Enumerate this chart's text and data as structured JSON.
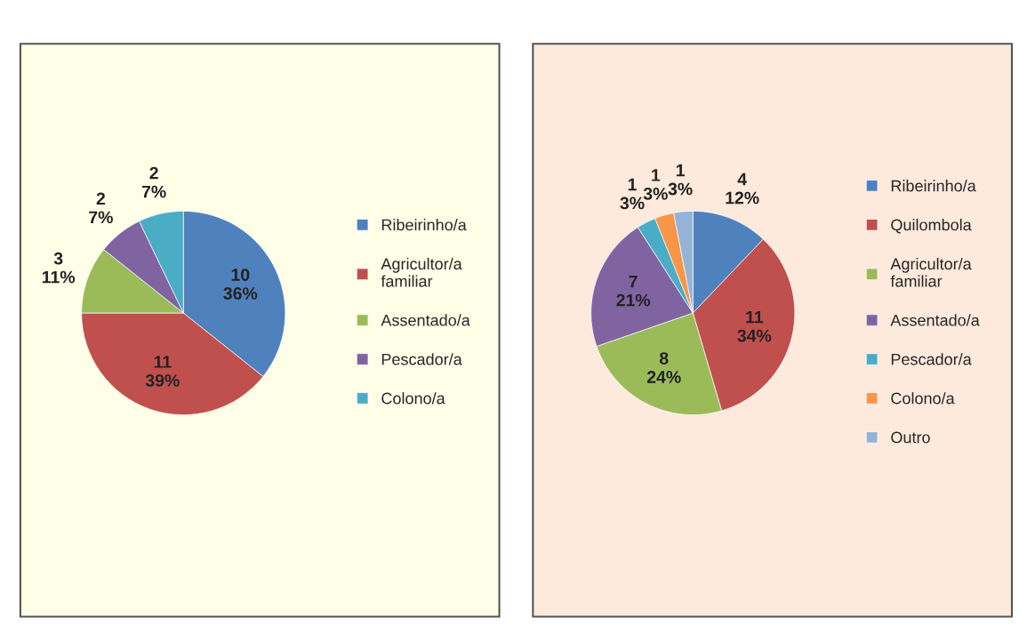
{
  "chart_data": [
    {
      "type": "pie",
      "categories": [
        "Ribeirinho/a",
        "Agricultor/a\nfamiliar",
        "Assentado/a",
        "Pescador/a",
        "Colono/a"
      ],
      "values": [
        10,
        11,
        3,
        2,
        2
      ],
      "colors": [
        "#4f81bd",
        "#c0504d",
        "#9bbb59",
        "#8064a2",
        "#4bacc6"
      ],
      "value_labels": [
        "10\n36%",
        "11\n39%",
        "3\n11%",
        "2\n7%",
        "2\n7%"
      ],
      "legend": "right"
    },
    {
      "type": "pie",
      "categories": [
        "Ribeirinho/a",
        "Quilombola",
        "Agricultor/a\nfamiliar",
        "Assentado/a",
        "Pescador/a",
        "Colono/a",
        "Outro"
      ],
      "values": [
        4,
        11,
        8,
        7,
        1,
        1,
        1
      ],
      "colors": [
        "#4f81bd",
        "#c0504d",
        "#9bbb59",
        "#8064a2",
        "#4bacc6",
        "#f79646",
        "#95b3d7"
      ],
      "value_labels": [
        "4\n12%",
        "11\n34%",
        "8\n24%",
        "7\n21%",
        "1\n3%",
        "1\n3%",
        "1\n3%"
      ],
      "legend": "right"
    }
  ]
}
